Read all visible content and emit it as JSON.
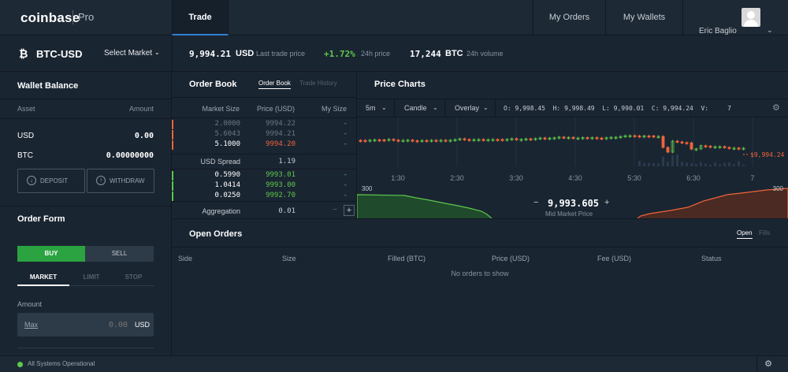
{
  "header": {
    "logo": "coinbase",
    "logo_sub": "Pro",
    "nav_trade": "Trade",
    "nav_orders": "My Orders",
    "nav_wallets": "My Wallets",
    "user_name": "Eric Baglio",
    "user_caret": "⌄"
  },
  "market": {
    "icon": "₿",
    "pair": "BTC-USD",
    "select_label": "Select Market",
    "select_caret": "⌄",
    "last_price": "9,994.21",
    "last_price_unit": "USD",
    "last_price_label": "Last trade price",
    "change": "+1.72%",
    "change_label": "24h price",
    "volume": "17,244",
    "volume_unit": "BTC",
    "volume_label": "24h volume"
  },
  "wallet": {
    "title": "Wallet Balance",
    "col_asset": "Asset",
    "col_amount": "Amount",
    "balances": [
      {
        "asset": "USD",
        "amount": "0.00"
      },
      {
        "asset": "BTC",
        "amount": "0.00000000"
      }
    ],
    "deposit_label": "DEPOSIT",
    "withdraw_label": "WITHDRAW"
  },
  "order_form": {
    "title": "Order Form",
    "buy_label": "BUY",
    "sell_label": "SELL",
    "type_market": "MARKET",
    "type_limit": "LIMIT",
    "type_stop": "STOP",
    "amount_label": "Amount",
    "max_label": "Max",
    "amount_value": "0.00",
    "amount_unit": "USD"
  },
  "order_book": {
    "title": "Order Book",
    "tab_book": "Order Book",
    "tab_history": "Trade History",
    "col_size": "Market Size",
    "col_price": "Price (USD)",
    "col_my": "My Size",
    "asks": [
      {
        "size": "2.0000",
        "price": "9994.22",
        "my": "-"
      },
      {
        "size": "5.6043",
        "price": "9994.21",
        "my": "-"
      },
      {
        "size": "5.1000",
        "price": "9994.20",
        "my": "-"
      }
    ],
    "spread_label": "USD Spread",
    "spread_value": "1.19",
    "bids": [
      {
        "size": "0.5990",
        "price": "9993.01",
        "my": "-"
      },
      {
        "size": "1.0414",
        "price": "9993.00",
        "my": "-"
      },
      {
        "size": "0.0250",
        "price": "9992.70",
        "my": "-"
      }
    ],
    "aggregation_label": "Aggregation",
    "aggregation_value": "0.01",
    "agg_minus": "−",
    "agg_plus": "+"
  },
  "price_chart": {
    "title": "Price Charts",
    "interval": "5m",
    "chart_type": "Candle",
    "overlay": "Overlay",
    "ohlc_text": "O: 9,998.45  H: 9,998.49  L: 9,990.01  C: 9,994.24  V:     7",
    "time_labels": [
      "1:30",
      "2:30",
      "3:30",
      "4:30",
      "5:30",
      "6:30",
      "7"
    ],
    "last_price_tag": "$9,994.24",
    "depth_left_label": "300",
    "depth_right_label": "300",
    "mid_price": "9,993.605",
    "mid_label": "Mid Market Price",
    "mid_minus": "−",
    "mid_plus": "+",
    "colors": {
      "up": "#5dc94b",
      "down": "#f0653a"
    }
  },
  "open_orders": {
    "title": "Open Orders",
    "tab_open": "Open",
    "tab_fills": "Fills",
    "columns": [
      "Side",
      "Size",
      "Filled (BTC)",
      "Price (USD)",
      "Fee (USD)",
      "Status"
    ],
    "empty_text": "No orders to show"
  },
  "footer": {
    "status": "All Systems Operational",
    "status_color": "#5dc94b"
  }
}
